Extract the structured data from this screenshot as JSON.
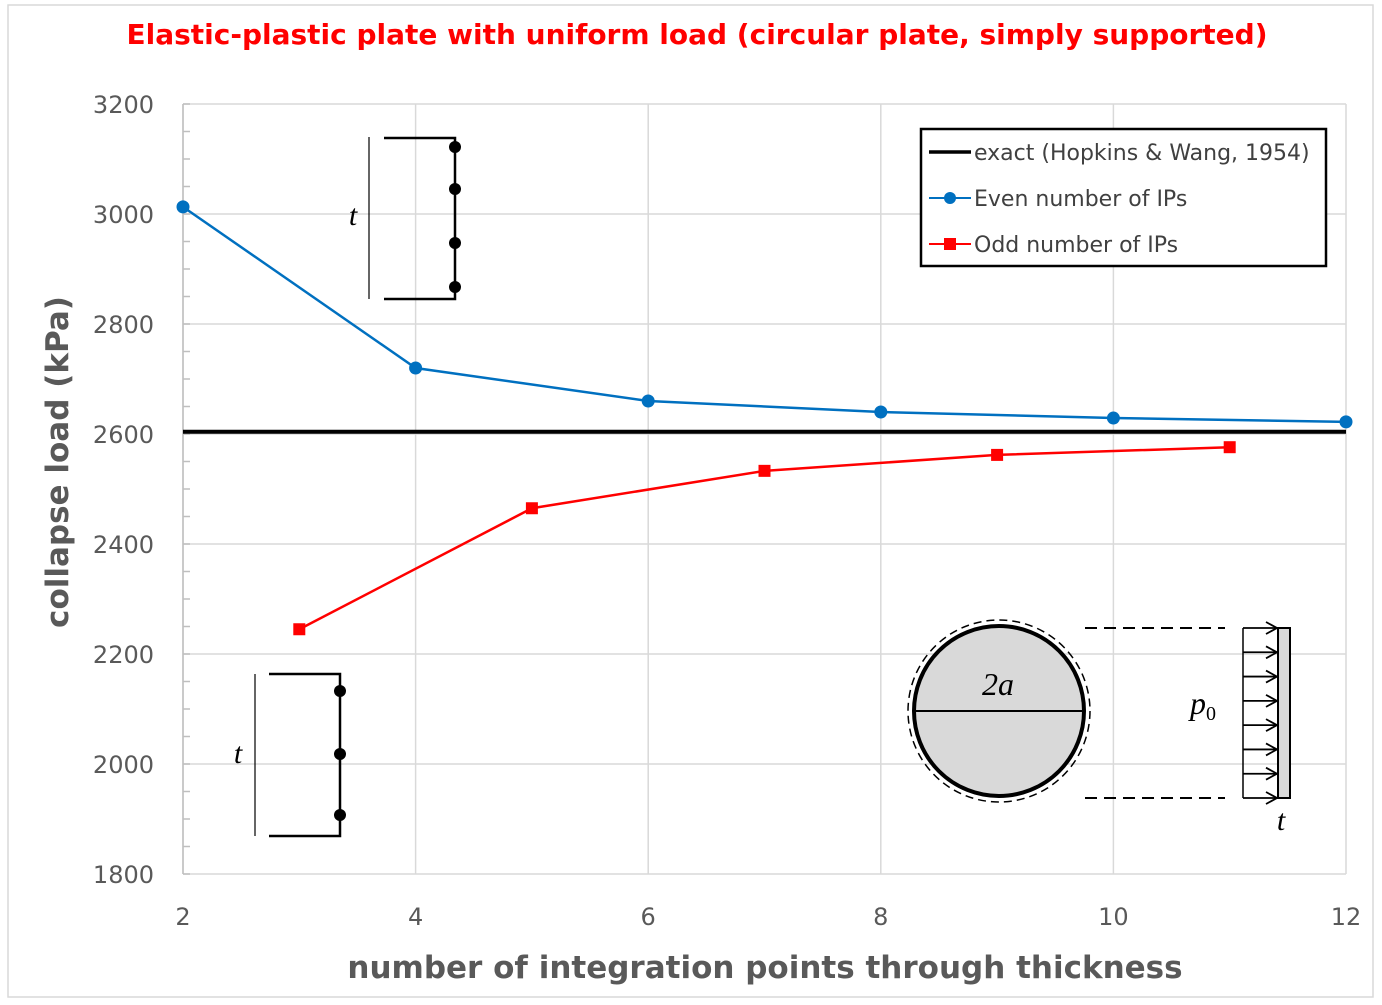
{
  "chart_data": {
    "type": "line",
    "title": "Elastic-plastic plate with uniform load (circular plate, simply supported)",
    "xlabel": "number of integration points through thickness",
    "ylabel": "collapse load (kPa)",
    "xlim": [
      2,
      12
    ],
    "ylim": [
      1800,
      3200
    ],
    "xticks": [
      2,
      4,
      6,
      8,
      10,
      12
    ],
    "yticks": [
      1800,
      2000,
      2200,
      2400,
      2600,
      2800,
      3000,
      3200
    ],
    "grid": true,
    "legend_position": "top-right",
    "series": [
      {
        "name": "exact (Hopkins & Wang, 1954)",
        "color": "#000000",
        "marker": "none",
        "x": [
          2,
          12
        ],
        "y": [
          2604,
          2604
        ]
      },
      {
        "name": "Even number of IPs",
        "color": "#0070c0",
        "marker": "circle",
        "x": [
          2,
          4,
          6,
          8,
          10,
          12
        ],
        "y": [
          3013,
          2720,
          2660,
          2640,
          2629,
          2622
        ]
      },
      {
        "name": "Odd number of IPs",
        "color": "#ff0000",
        "marker": "square",
        "x": [
          3,
          5,
          7,
          9,
          11
        ],
        "y": [
          2245,
          2465,
          2533,
          2562,
          2576
        ]
      }
    ],
    "annotations": {
      "inset_thickness_label": "t",
      "diameter_label": "2a",
      "pressure_label": "p",
      "pressure_subscript": "0",
      "plate_thickness_label": "t"
    }
  }
}
